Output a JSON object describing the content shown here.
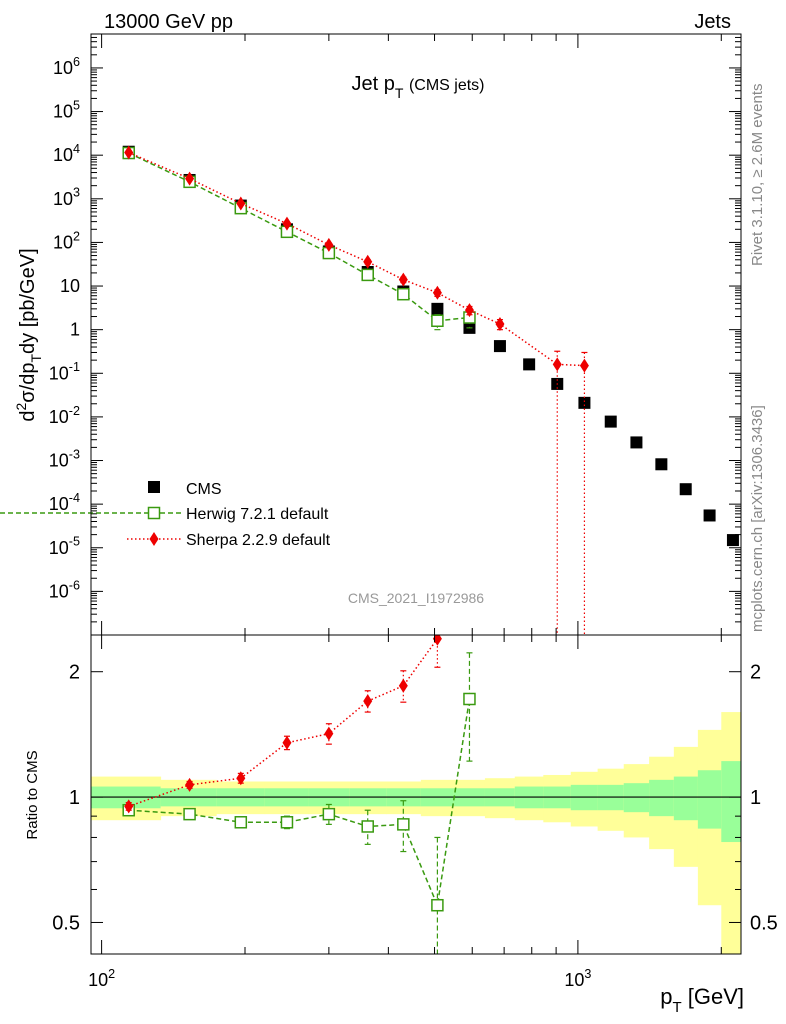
{
  "header": {
    "left": "13000 GeV pp",
    "right": "Jets"
  },
  "side_text": {
    "rivet": "Rivet 3.1.10, ≥ 2.6M events",
    "mcplots": "mcplots.cern.ch [arXiv:1306.3436]"
  },
  "watermark": "CMS_2021_I1972986",
  "colors": {
    "cms": "#000000",
    "herwig": "#3a9a10",
    "sherpa": "#ee0000",
    "band_inner": "#99ff99",
    "band_outer": "#ffff99"
  },
  "chart_data": [
    {
      "type": "scatter",
      "title_main": "Jet p",
      "title_sub": "T",
      "title_suffix": "(CMS jets)",
      "ylabel": "d²σ/dp_T dy [pb/GeV]",
      "xscale": "log",
      "yscale": "log",
      "xlim": [
        95,
        2200
      ],
      "ylim": [
        1e-07,
        6000000.0
      ],
      "ytick_labels": [
        {
          "value": 1000000.0,
          "label": "10^6"
        },
        {
          "value": 100000.0,
          "label": "10^5"
        },
        {
          "value": 10000.0,
          "label": "10^4"
        },
        {
          "value": 1000.0,
          "label": "10^3"
        },
        {
          "value": 100.0,
          "label": "10^2"
        },
        {
          "value": 10,
          "label": "10"
        },
        {
          "value": 1,
          "label": "1"
        },
        {
          "value": 0.1,
          "label": "10^-1"
        },
        {
          "value": 0.01,
          "label": "10^-2"
        },
        {
          "value": 0.001,
          "label": "10^-3"
        },
        {
          "value": 0.0001,
          "label": "10^-4"
        },
        {
          "value": 1e-05,
          "label": "10^-5"
        },
        {
          "value": 1e-06,
          "label": "10^-6"
        }
      ],
      "legend_position": "bottom-left",
      "series": [
        {
          "name": "CMS",
          "marker": "filled-square",
          "x": [
            114,
            153,
            196,
            245,
            300,
            362,
            430,
            507,
            592,
            686,
            790,
            905,
            1032,
            1172,
            1327,
            1497,
            1684,
            1890,
            2116
          ],
          "y": [
            12000,
            2700,
            700,
            200,
            62,
            21,
            7.5,
            3.0,
            1.1,
            0.42,
            0.16,
            0.057,
            0.021,
            0.0078,
            0.0026,
            0.00082,
            0.00022,
            5.5e-05,
            1.5e-05
          ]
        },
        {
          "name": "Herwig 7.2.1 default",
          "marker": "open-square",
          "line": "dashed",
          "x": [
            114,
            153,
            196,
            245,
            300,
            362,
            430,
            507,
            592
          ],
          "y": [
            11200,
            2450,
            610,
            175,
            57,
            18,
            6.5,
            1.6,
            1.9
          ],
          "yerr": [
            300,
            100,
            25,
            10,
            4,
            2,
            1,
            0.6,
            0.8
          ]
        },
        {
          "name": "Sherpa 2.2.9 default",
          "marker": "filled-diamond",
          "line": "dotted",
          "x": [
            114,
            153,
            196,
            245,
            300,
            362,
            430,
            507,
            592,
            686,
            905,
            1032
          ],
          "y": [
            11500,
            2900,
            780,
            270,
            88,
            36,
            14,
            7.0,
            2.8,
            1.35,
            0.16,
            0.15
          ],
          "yerr": [
            300,
            100,
            25,
            15,
            6,
            4,
            2,
            1.2,
            0.6,
            0.35,
            0.16,
            0.15
          ]
        }
      ]
    },
    {
      "type": "line",
      "ylabel": "Ratio to CMS",
      "xlabel": "p_T [GeV]",
      "xscale": "log",
      "yscale": "log",
      "xlim": [
        95,
        2200
      ],
      "ylim": [
        0.42,
        2.45
      ],
      "ytick_labels": [
        {
          "value": 2,
          "label": "2"
        },
        {
          "value": 1,
          "label": "1"
        },
        {
          "value": 0.5,
          "label": "0.5"
        }
      ],
      "xtick_labels": [
        {
          "value": 100,
          "label": "10^2"
        },
        {
          "value": 1000,
          "label": "10^3"
        }
      ],
      "reference_line": 1,
      "uncertainty_band": {
        "edges": [
          95,
          133,
          174,
          220,
          272,
          331,
          396,
          468,
          549,
          638,
          737,
          846,
          966,
          1100,
          1248,
          1411,
          1590,
          1786,
          2000,
          2200
        ],
        "inner": [
          0.06,
          0.05,
          0.05,
          0.05,
          0.05,
          0.05,
          0.05,
          0.05,
          0.05,
          0.05,
          0.06,
          0.06,
          0.07,
          0.07,
          0.08,
          0.1,
          0.12,
          0.16,
          0.22
        ],
        "outer": [
          0.12,
          0.1,
          0.09,
          0.09,
          0.09,
          0.09,
          0.09,
          0.1,
          0.1,
          0.11,
          0.12,
          0.13,
          0.15,
          0.17,
          0.2,
          0.25,
          0.32,
          0.45,
          0.6
        ]
      },
      "series": [
        {
          "name": "Herwig 7.2.1 default",
          "marker": "open-square",
          "line": "dashed",
          "x": [
            114,
            153,
            196,
            245,
            300,
            362,
            430,
            507,
            592
          ],
          "y": [
            0.93,
            0.91,
            0.87,
            0.87,
            0.91,
            0.85,
            0.86,
            0.55,
            1.72
          ],
          "yerr": [
            0.02,
            0.02,
            0.02,
            0.03,
            0.05,
            0.08,
            0.12,
            0.25,
            0.5
          ]
        },
        {
          "name": "Sherpa 2.2.9 default",
          "marker": "filled-diamond",
          "line": "dotted",
          "x": [
            114,
            153,
            196,
            245,
            300,
            362,
            430,
            507
          ],
          "y": [
            0.95,
            1.07,
            1.11,
            1.35,
            1.42,
            1.7,
            1.85,
            2.4
          ],
          "yerr": [
            0.02,
            0.02,
            0.03,
            0.05,
            0.08,
            0.1,
            0.16,
            0.35
          ]
        }
      ]
    }
  ]
}
